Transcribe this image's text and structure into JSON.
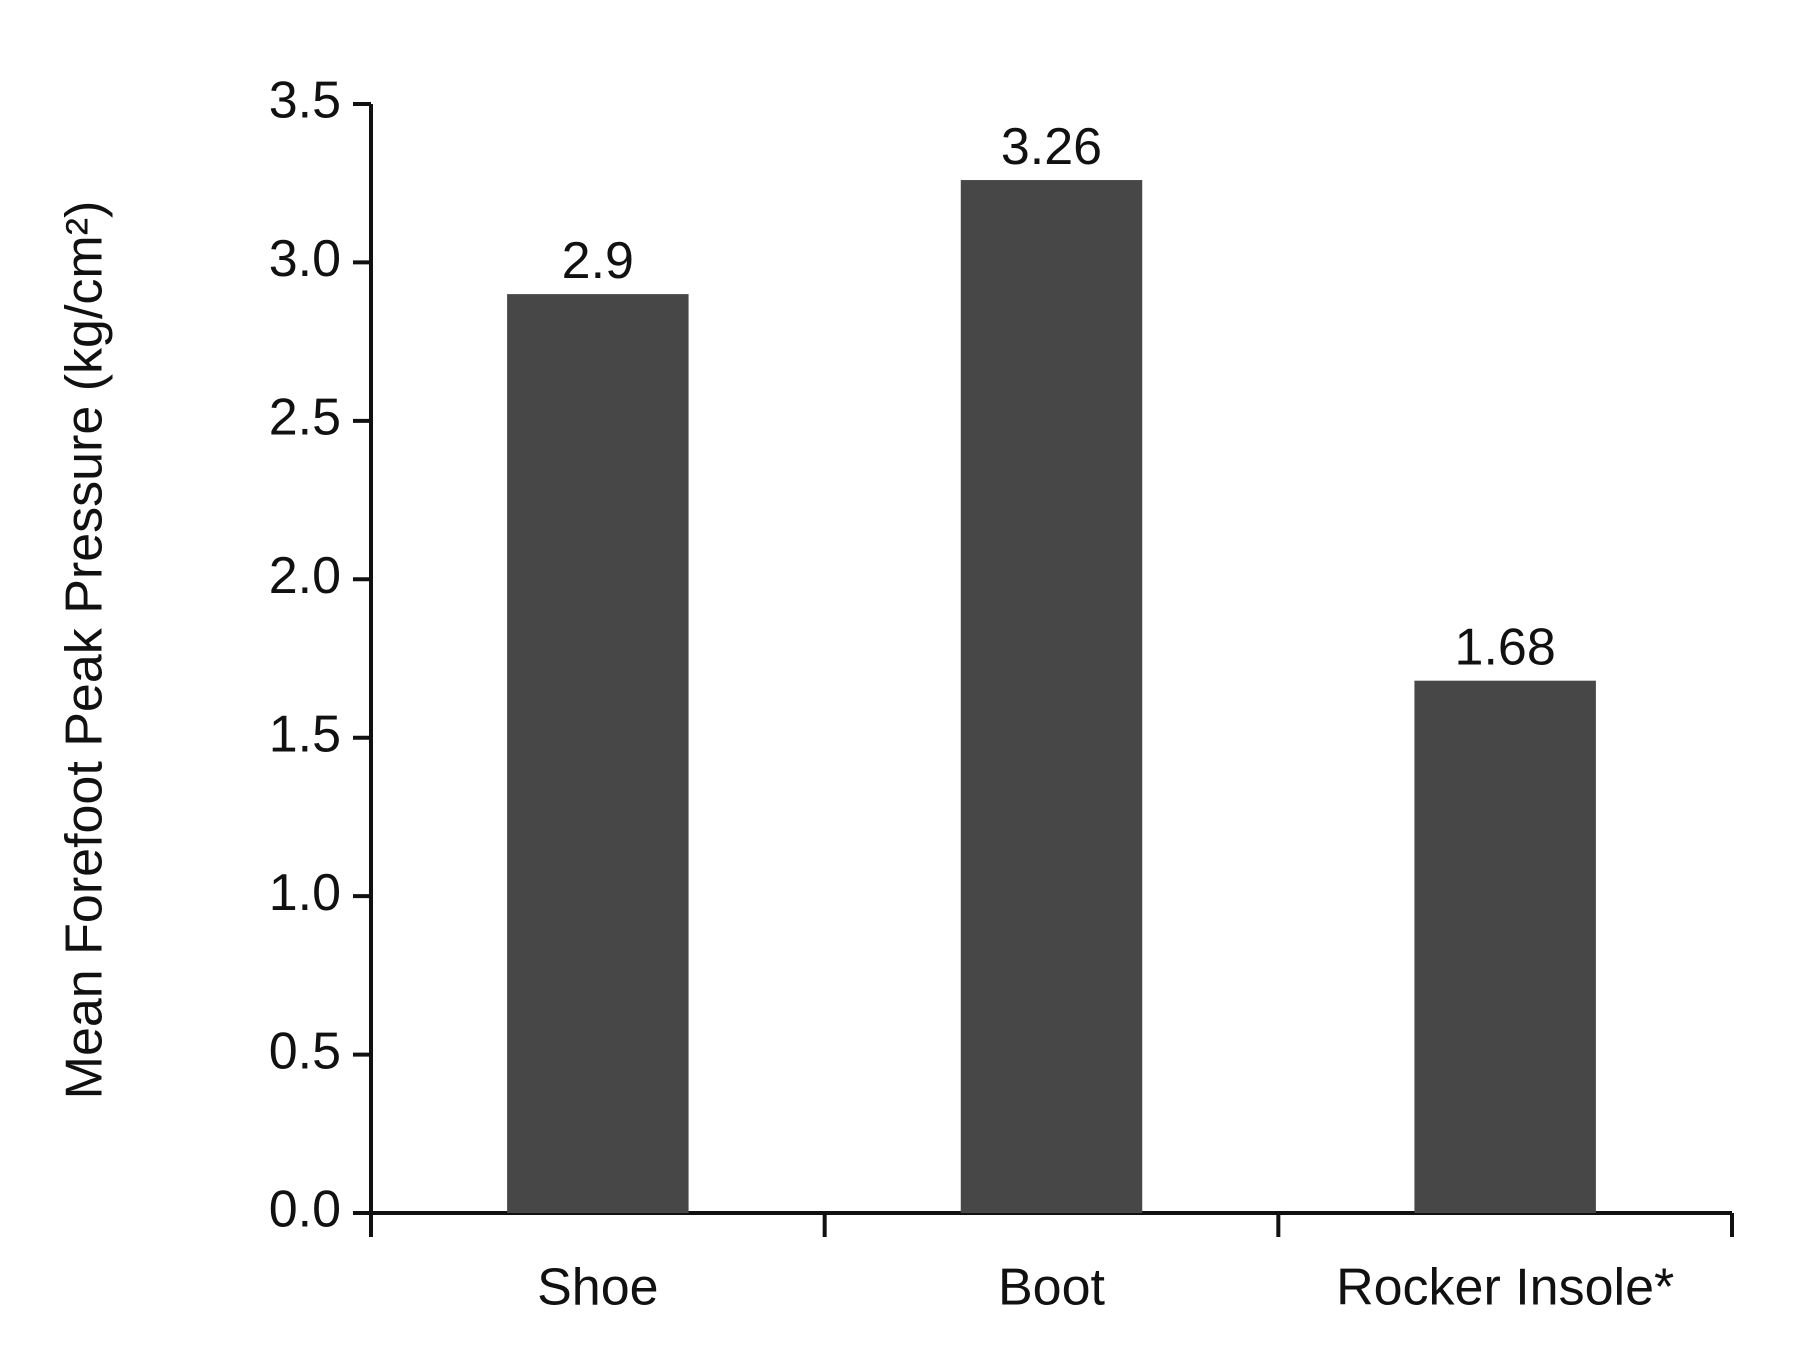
{
  "chart_data": {
    "type": "bar",
    "y_label": "Mean Forefoot Peak Pressure (kg/cm²)",
    "categories": [
      "Shoe",
      "Boot",
      "Rocker Insole*"
    ],
    "values": [
      2.9,
      3.26,
      1.68
    ],
    "color": "#474747",
    "ylim": [
      0,
      3.5
    ],
    "yticks": [
      {
        "value": 0,
        "label": "0.0"
      },
      0.5,
      {
        "value": 1,
        "label": "1.0"
      },
      1.5,
      {
        "value": 2,
        "label": "2.0"
      },
      2.5,
      {
        "value": 3,
        "label": "3.0"
      },
      3.5
    ],
    "grid": false
  }
}
